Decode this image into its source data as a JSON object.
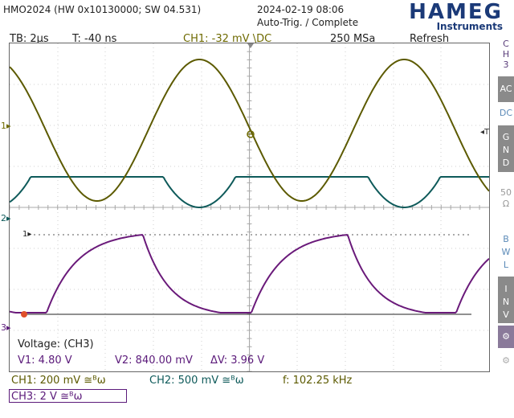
{
  "header": {
    "model": "HMO2024 (HW 0x10130000; SW 04.531)",
    "datetime": "2024-02-19 08:06",
    "trigger_status": "Auto-Trig. / Complete",
    "brand": "HAMEG",
    "brand_sub": "Instruments"
  },
  "info": {
    "timebase": "TB: 2µs",
    "trigger_time": "T: -40 ns",
    "ch1_trigger": "CH1: -32 mV \\DC",
    "sample_rate": "250 MSa",
    "mode": "Refresh"
  },
  "markers": {
    "ch1": "1",
    "ch2": "2",
    "ch3": "3",
    "ref1": "1",
    "trig_right": "T"
  },
  "cursor_box": {
    "title": "Voltage: (CH3)",
    "v1": "V1: 4.80 V",
    "v2": "V2: 840.00 mV",
    "dv": "ΔV: 3.96 V"
  },
  "footer": {
    "ch1": "CH1: 200 mV ≅ᴮω",
    "ch2": "CH2: 500 mV ≅ᴮω",
    "freq": "f: 102.25 kHz",
    "ch3": "CH3: 2 V ≅ᴮω"
  },
  "side_panel": {
    "channel_label_1": "C",
    "channel_label_2": "H",
    "channel_label_3": "3",
    "ac": "AC",
    "dc": "DC",
    "gnd_1": "G",
    "gnd_2": "N",
    "gnd_3": "D",
    "imp_1": "50",
    "imp_2": "Ω",
    "bwl_1": "B",
    "bwl_2": "W",
    "bwl_3": "L",
    "inv_1": "I",
    "inv_2": "N",
    "inv_3": "V",
    "probe_1": "⚙",
    "probe_2": "⚙"
  },
  "colors": {
    "ch1": "#5c5a00",
    "ch2": "#0e5a5a",
    "ch3": "#6a1a7a",
    "brand": "#1b3a78",
    "grid": "#c8c8c8"
  }
}
